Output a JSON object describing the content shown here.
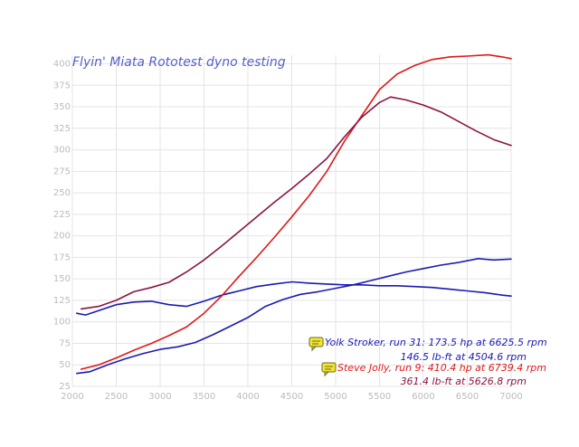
{
  "chart_data": {
    "type": "line",
    "title": "Flyin' Miata Rototest dyno testing",
    "xlabel": "",
    "ylabel": "",
    "xlim": [
      2000,
      7000
    ],
    "ylim": [
      25,
      410
    ],
    "x_ticks": [
      2000,
      2500,
      3000,
      3500,
      4000,
      4500,
      5000,
      5500,
      6000,
      6500,
      7000
    ],
    "y_ticks": [
      25,
      50,
      75,
      100,
      125,
      150,
      175,
      200,
      225,
      250,
      275,
      300,
      325,
      350,
      375,
      400
    ],
    "grid": true,
    "series": [
      {
        "name": "Yolk Stroker, run 31 hp",
        "color": "#1a1ab4",
        "x": [
          2050,
          2200,
          2400,
          2600,
          2800,
          3000,
          3200,
          3400,
          3600,
          3800,
          4000,
          4200,
          4400,
          4600,
          4800,
          5000,
          5200,
          5400,
          5600,
          5800,
          6000,
          6200,
          6400,
          6625,
          6800,
          7000
        ],
        "y": [
          40,
          42,
          50,
          57,
          63,
          68,
          71,
          76,
          85,
          95,
          105,
          118,
          126,
          132,
          135,
          139,
          143,
          148,
          153,
          158,
          162,
          166,
          169,
          173.5,
          172,
          173
        ]
      },
      {
        "name": "Yolk Stroker, run 31 torque",
        "color": "#1a1ab4",
        "x": [
          2050,
          2150,
          2300,
          2500,
          2700,
          2900,
          3100,
          3300,
          3500,
          3700,
          3900,
          4100,
          4300,
          4504,
          4700,
          4900,
          5100,
          5300,
          5500,
          5700,
          5900,
          6100,
          6300,
          6500,
          6700,
          6900,
          7000
        ],
        "y": [
          110,
          108,
          113,
          120,
          123,
          124,
          120,
          118,
          124,
          131,
          136,
          141,
          144,
          146.5,
          145,
          144,
          143,
          143,
          142,
          142,
          141,
          140,
          138,
          136,
          134,
          131,
          130
        ]
      },
      {
        "name": "Steve Jolly, run 9 hp",
        "color": "#e01818",
        "x": [
          2100,
          2300,
          2500,
          2700,
          2900,
          3100,
          3300,
          3500,
          3700,
          3900,
          4100,
          4300,
          4500,
          4700,
          4900,
          5100,
          5300,
          5500,
          5700,
          5900,
          6100,
          6300,
          6500,
          6739,
          6900,
          7000
        ],
        "y": [
          45,
          50,
          58,
          67,
          75,
          84,
          94,
          110,
          130,
          153,
          175,
          198,
          222,
          247,
          275,
          310,
          340,
          370,
          388,
          398,
          405,
          408,
          409,
          410.4,
          408,
          406
        ]
      },
      {
        "name": "Steve Jolly, run 9 torque",
        "color": "#8a1442",
        "x": [
          2100,
          2300,
          2500,
          2700,
          2900,
          3100,
          3300,
          3500,
          3700,
          3900,
          4100,
          4300,
          4500,
          4700,
          4900,
          5100,
          5300,
          5500,
          5626,
          5800,
          6000,
          6200,
          6400,
          6600,
          6800,
          7000
        ],
        "y": [
          115,
          118,
          125,
          135,
          140,
          146,
          158,
          172,
          188,
          205,
          222,
          239,
          255,
          272,
          290,
          315,
          338,
          355,
          361.4,
          358,
          352,
          344,
          333,
          322,
          312,
          305
        ]
      }
    ],
    "legend_position": "bottom-right",
    "annotations": [
      {
        "lines": [
          "Yolk Stroker, run 31: 173.5 hp at 6625.5 rpm",
          "146.5 lb-ft at 4504.6 rpm"
        ],
        "colors": [
          "#1a1ab4",
          "#1a1ab4"
        ]
      },
      {
        "lines": [
          "Steve Jolly, run 9: 410.4 hp at 6739.4 rpm",
          "361.4 lb-ft at 5626.8 rpm"
        ],
        "colors": [
          "#e01818",
          "#8a1442"
        ]
      }
    ]
  },
  "colors": {
    "grid": "#e4e4e4",
    "tick_label": "#bbbbbb",
    "title": "#5560c8",
    "note_icon": "#f2e632"
  },
  "icons": [
    "note-icon"
  ]
}
